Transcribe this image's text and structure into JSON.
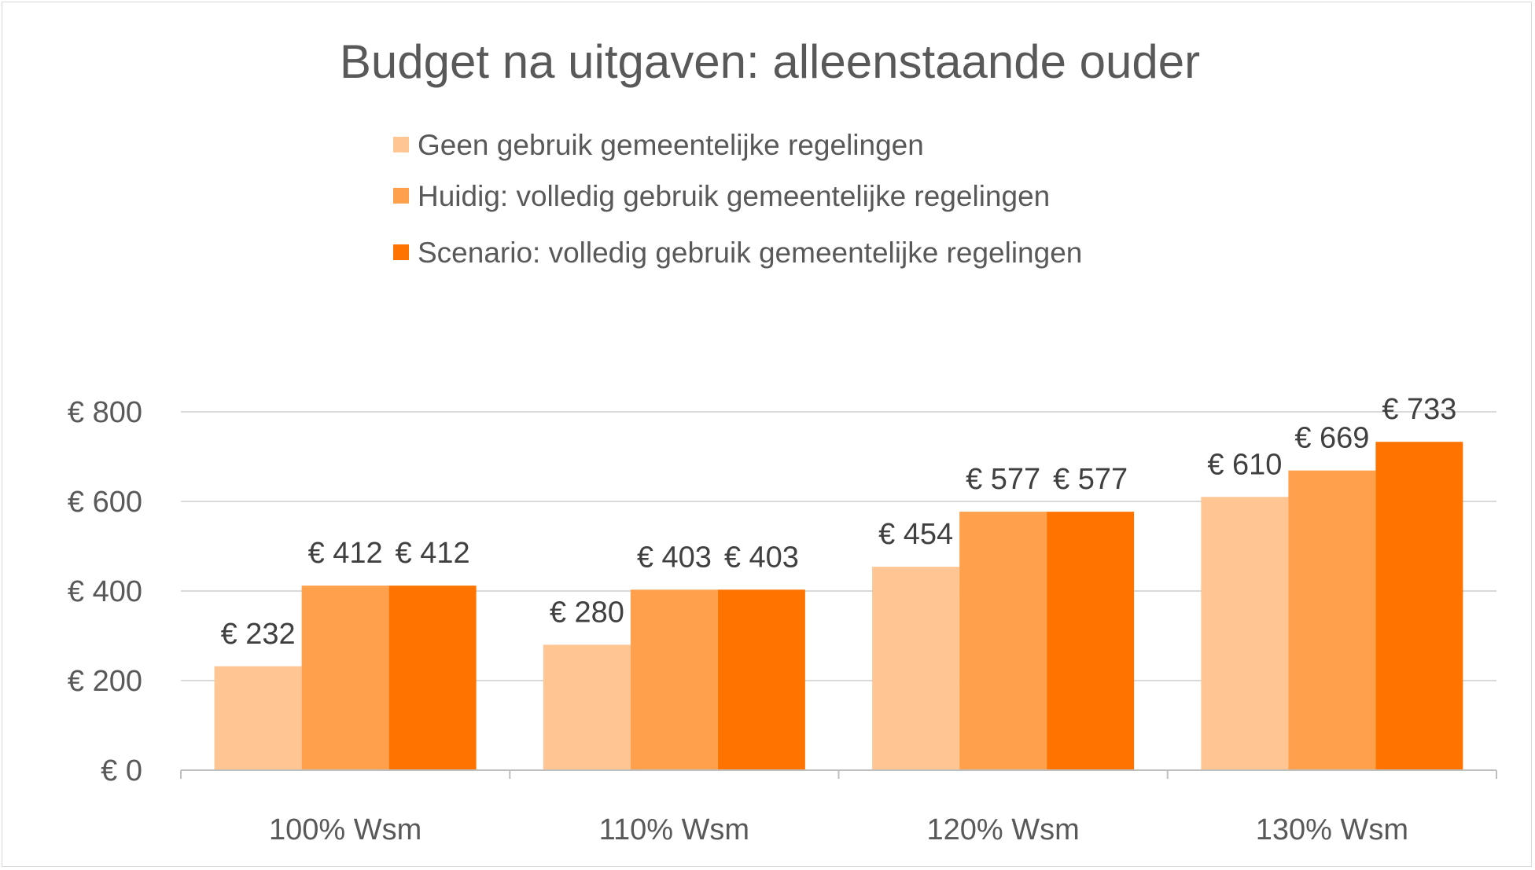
{
  "chart_data": {
    "type": "bar",
    "title": "Budget na uitgaven: alleenstaande ouder",
    "categories": [
      "100% Wsm",
      "110% Wsm",
      "120% Wsm",
      "130% Wsm"
    ],
    "series": [
      {
        "name": "Geen gebruik gemeentelijke regelingen",
        "color": "#FFC593",
        "values": [
          232,
          280,
          454,
          610
        ],
        "labels": [
          "€ 232",
          "€ 280",
          "€ 454",
          "€ 610"
        ]
      },
      {
        "name": "Huidig: volledig gebruik gemeentelijke regelingen",
        "color": "#FFA04D",
        "values": [
          412,
          403,
          577,
          669
        ],
        "labels": [
          "€ 412",
          "€ 403",
          "€ 577",
          "€ 669"
        ]
      },
      {
        "name": "Scenario: volledig gebruik gemeentelijke regelingen",
        "color": "#FF7400",
        "values": [
          412,
          403,
          577,
          733
        ],
        "labels": [
          "€ 412",
          "€ 403",
          "€ 577",
          "€ 733"
        ]
      }
    ],
    "ylim": [
      0,
      800
    ],
    "yticks": [
      0,
      200,
      400,
      600,
      800
    ],
    "ytick_labels": [
      "€ 0",
      "€ 200",
      "€ 400",
      "€ 600",
      "€ 800"
    ],
    "xlabel": "",
    "ylabel": "",
    "grid": true,
    "legend_position": "top"
  }
}
